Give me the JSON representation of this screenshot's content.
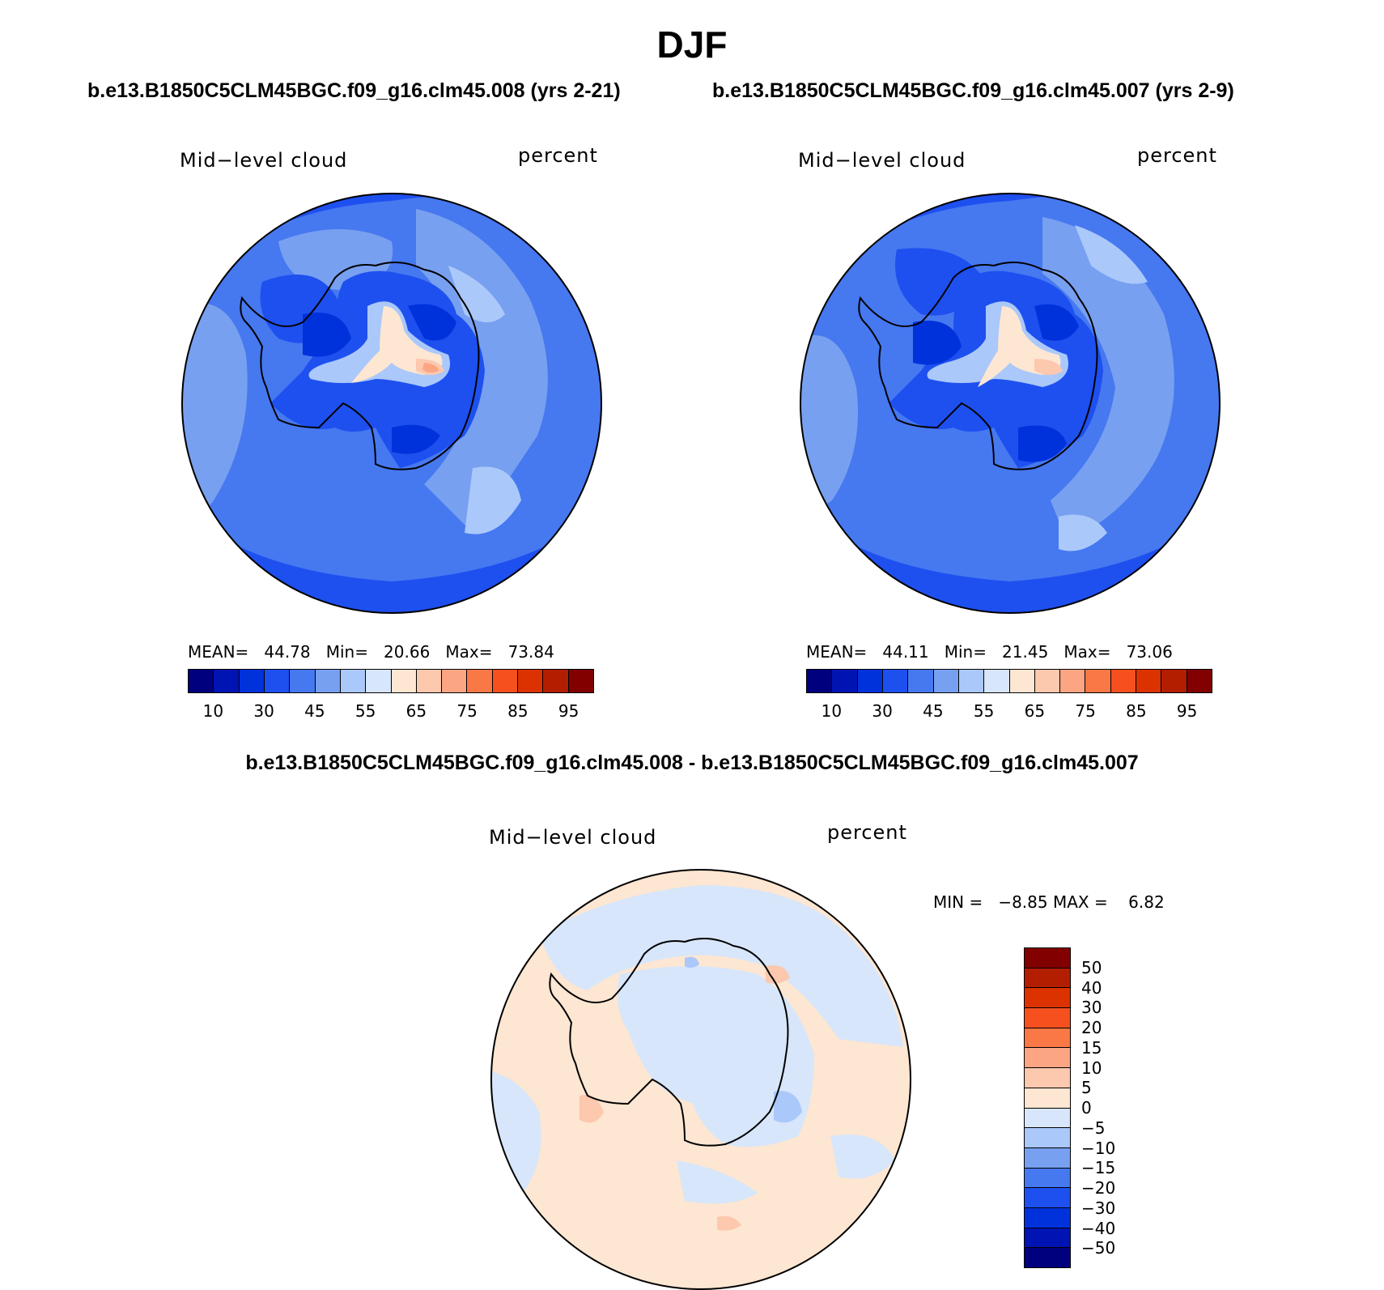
{
  "title": "DJF",
  "panels": [
    {
      "case_title": "b.e13.B1850C5CLM45BGC.f09_g16.clm45.008 (yrs 2-21)",
      "variable": "Mid−level cloud",
      "units": "percent",
      "mean_label": "MEAN=",
      "mean": "44.78",
      "min_label": "Min=",
      "min": "20.66",
      "max_label": "Max=",
      "max": "73.84"
    },
    {
      "case_title": "b.e13.B1850C5CLM45BGC.f09_g16.clm45.007 (yrs 2-9)",
      "variable": "Mid−level cloud",
      "units": "percent",
      "mean_label": "MEAN=",
      "mean": "44.11",
      "min_label": "Min=",
      "min": "21.45",
      "max_label": "Max=",
      "max": "73.06"
    }
  ],
  "abs_colorbar": {
    "colors": [
      "#00007f",
      "#0014b4",
      "#0032dc",
      "#1e50f0",
      "#4678f0",
      "#78a0f0",
      "#aac8fa",
      "#d7e6fa",
      "#fde6d2",
      "#fcc8ae",
      "#fca582",
      "#fa7846",
      "#f5501e",
      "#dc3200",
      "#b41e00",
      "#820000"
    ],
    "tick_labels": [
      "10",
      "30",
      "45",
      "55",
      "65",
      "75",
      "85",
      "95"
    ]
  },
  "diff": {
    "title": "b.e13.B1850C5CLM45BGC.f09_g16.clm45.008 - b.e13.B1850C5CLM45BGC.f09_g16.clm45.007",
    "variable": "Mid−level cloud",
    "units": "percent",
    "min_label": "MIN =",
    "min": "−8.85",
    "max_label": "MAX =",
    "max": "6.82",
    "colorbar": {
      "colors_top_to_bottom": [
        "#820000",
        "#b41e00",
        "#dc3200",
        "#f5501e",
        "#fa7846",
        "#fca582",
        "#fcc8ae",
        "#fde6d2",
        "#d7e6fa",
        "#aac8fa",
        "#78a0f0",
        "#4678f0",
        "#1e50f0",
        "#0032dc",
        "#0014b4",
        "#00007f"
      ],
      "tick_labels": [
        "50",
        "40",
        "30",
        "20",
        "15",
        "10",
        "5",
        "0",
        "−5",
        "−10",
        "−15",
        "−20",
        "−30",
        "−40",
        "−50"
      ]
    }
  },
  "map_colors": {
    "ocean_base": "#4678f0",
    "ocean_light": "#78a0f0",
    "ocean_dark": "#1e50f0",
    "ice_dark": "#0032dc",
    "pale_blue": "#aac8fa",
    "very_pale": "#d7e6fa",
    "cream": "#fde6d2",
    "peach": "#fcc8ae",
    "orange": "#fca582",
    "diff_pos": "#fde6d2",
    "diff_neg": "#d7e6fa",
    "diff_pos2": "#fcc8ae",
    "diff_neg2": "#aac8fa"
  }
}
